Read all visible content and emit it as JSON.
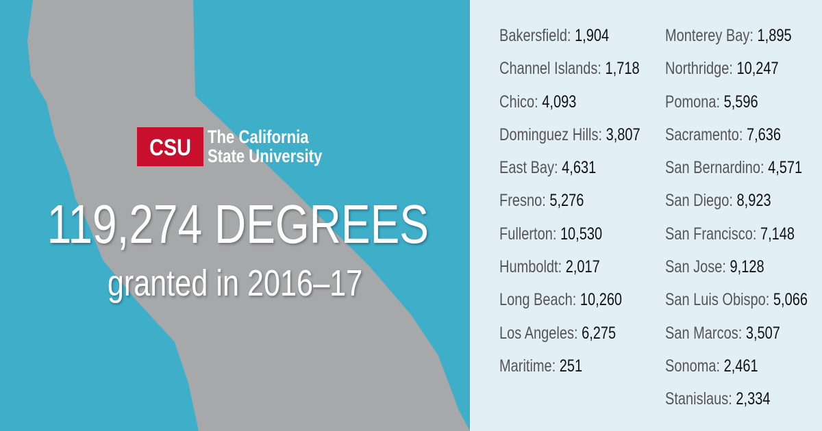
{
  "logo": {
    "abbreviation": "CSU",
    "name_lines": [
      "The California",
      "State University"
    ]
  },
  "headline": "119,274 DEGREES",
  "subheadline": "granted in 2016–17",
  "campus_columns": [
    [
      {
        "name": "Bakersfield:",
        "value": "1,904"
      },
      {
        "name": "Channel Islands:",
        "value": "1,718"
      },
      {
        "name": "Chico:",
        "value": "4,093"
      },
      {
        "name": "Dominguez Hills:",
        "value": "3,807"
      },
      {
        "name": "East Bay:",
        "value": "4,631"
      },
      {
        "name": "Fresno:",
        "value": "5,276"
      },
      {
        "name": "Fullerton:",
        "value": "10,530"
      },
      {
        "name": "Humboldt:",
        "value": "2,017"
      },
      {
        "name": "Long Beach:",
        "value": "10,260"
      },
      {
        "name": "Los Angeles:",
        "value": "6,275"
      },
      {
        "name": "Maritime:",
        "value": "251"
      }
    ],
    [
      {
        "name": "Monterey Bay:",
        "value": "1,895"
      },
      {
        "name": "Northridge:",
        "value": "10,247"
      },
      {
        "name": "Pomona:",
        "value": "5,596"
      },
      {
        "name": "Sacramento:",
        "value": "7,636"
      },
      {
        "name": "San Bernardino:",
        "value": "4,571"
      },
      {
        "name": "San Diego:",
        "value": "8,923"
      },
      {
        "name": "San Francisco:",
        "value": "7,148"
      },
      {
        "name": "San Jose:",
        "value": "9,128"
      },
      {
        "name": "San Luis Obispo:",
        "value": "5,066"
      },
      {
        "name": "San Marcos:",
        "value": "3,507"
      },
      {
        "name": "Sonoma:",
        "value": "2,461"
      },
      {
        "name": "Stanislaus:",
        "value": "2,334"
      }
    ]
  ]
}
